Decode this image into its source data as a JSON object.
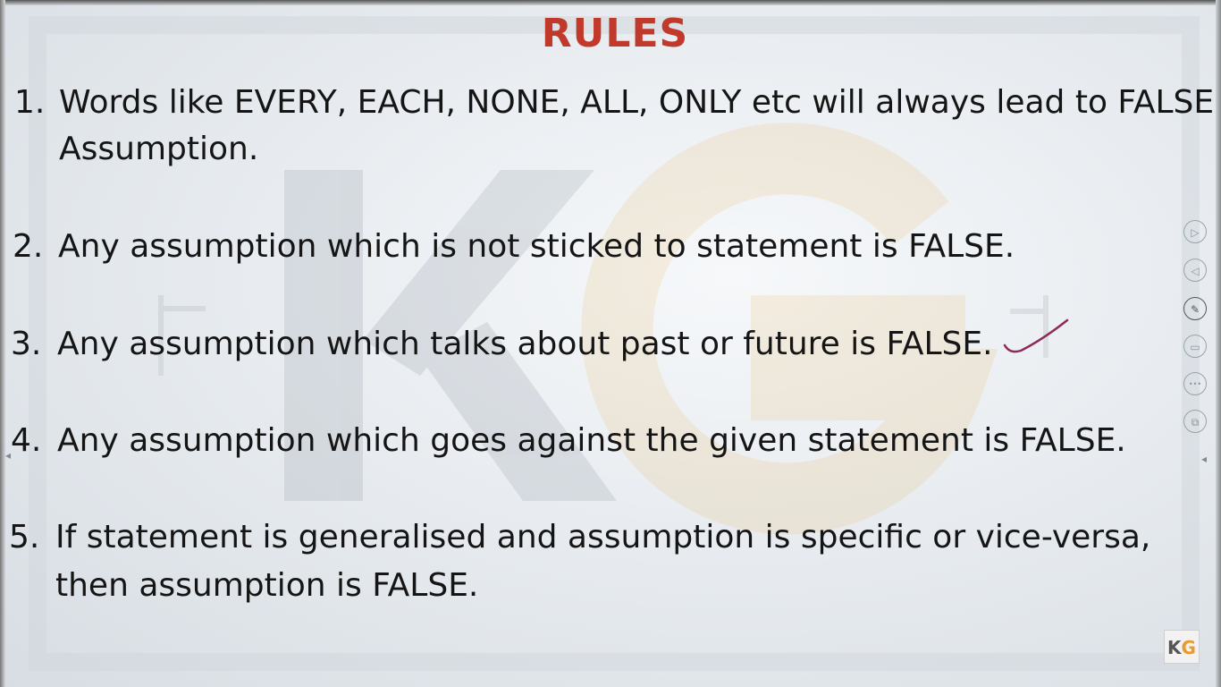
{
  "slide": {
    "title": "RULES",
    "rules": [
      {
        "number": "1.",
        "lines": [
          "Words like EVERY, EACH, NONE, ALL, ONLY etc will always lead to FALSE",
          "Assumption."
        ]
      },
      {
        "number": "2.",
        "lines": [
          "Any assumption which is not sticked to statement is FALSE."
        ]
      },
      {
        "number": "3.",
        "lines": [
          "Any assumption which talks about past or future is FALSE."
        ]
      },
      {
        "number": "4.",
        "lines": [
          "Any assumption which goes against the given statement is FALSE."
        ]
      },
      {
        "number": "5.",
        "lines": [
          "If statement is generalised and assumption is specific or vice-versa,",
          "then assumption is FALSE."
        ]
      }
    ],
    "annotation": {
      "type": "checkmark",
      "color": "#8e2a5a",
      "target_rule": "3."
    }
  },
  "toolbar": {
    "buttons": [
      {
        "icon": "play-icon",
        "glyph": "▷"
      },
      {
        "icon": "back-icon",
        "glyph": "◁"
      },
      {
        "icon": "pen-icon",
        "glyph": "✎"
      },
      {
        "icon": "whiteboard-icon",
        "glyph": "▭"
      },
      {
        "icon": "more-icon",
        "glyph": "•••"
      },
      {
        "icon": "screen-icon",
        "glyph": "⧉"
      }
    ]
  },
  "logo": {
    "k": "K",
    "g": "G"
  },
  "colors": {
    "title": "#c0392b",
    "text": "#151515",
    "watermark_k": "#8a93a0",
    "watermark_g": "#e8a84a"
  }
}
